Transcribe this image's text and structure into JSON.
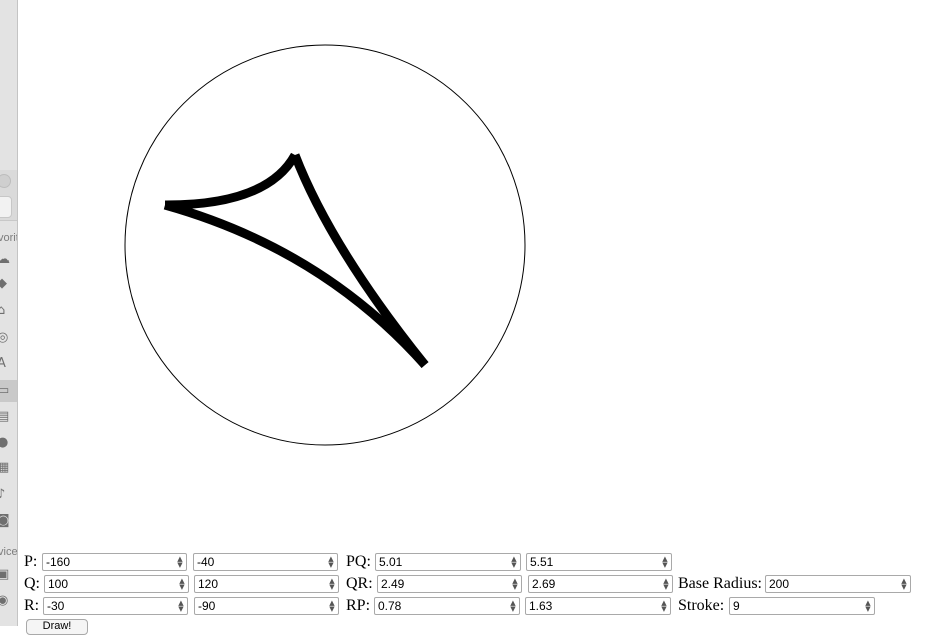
{
  "geometry": {
    "base_radius": 200,
    "stroke": 9
  },
  "controls": {
    "P": {
      "label": "P:",
      "v1": "-160",
      "v2": "-40"
    },
    "Q": {
      "label": "Q:",
      "v1": "100",
      "v2": "120"
    },
    "R": {
      "label": "R:",
      "v1": "-30",
      "v2": "-90"
    },
    "PQ": {
      "label": "PQ:",
      "v1": "5.01",
      "v2": "5.51"
    },
    "QR": {
      "label": "QR:",
      "v1": "2.49",
      "v2": "2.69"
    },
    "RP": {
      "label": "RP:",
      "v1": "0.78",
      "v2": "1.63"
    },
    "base_radius": {
      "label": "Base Radius:",
      "value": "200"
    },
    "stroke": {
      "label": "Stroke:",
      "value": "9"
    },
    "draw_label": "Draw!"
  },
  "background_window": {
    "labels": [
      "vorit",
      "vice"
    ],
    "icons": [
      "cloud-icon",
      "dropbox-icon",
      "home-icon",
      "airdrop-icon",
      "applications-icon",
      "desktop-icon",
      "documents-icon",
      "downloads-icon",
      "movies-icon",
      "music-icon",
      "pictures-icon",
      "disk-icon",
      "remote-disc-icon"
    ]
  },
  "colors": {
    "stroke": "#000000",
    "circle": "#000000",
    "background": "#ffffff"
  }
}
